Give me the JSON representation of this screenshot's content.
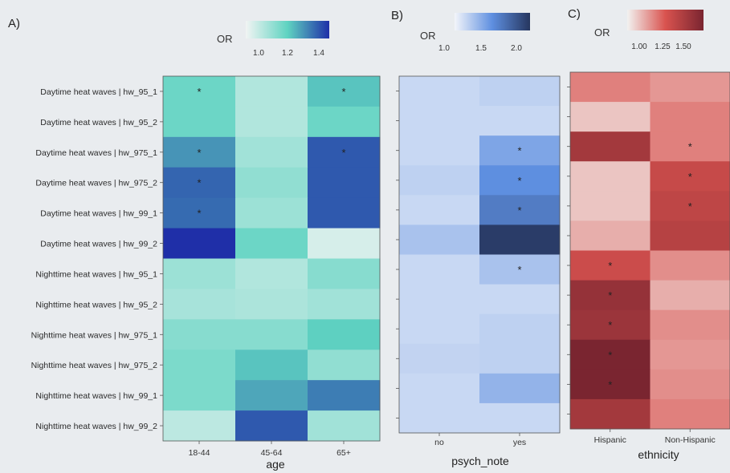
{
  "colors": {
    "background": "#e9ecef",
    "panel_A": [
      "#f1f4f3",
      "#5fd3c1",
      "#1f2fa8"
    ],
    "panel_B": [
      "#f3f5fa",
      "#5e8fe0",
      "#26365f"
    ],
    "panel_C": [
      "#f2f2f0",
      "#d9534f",
      "#7a2530"
    ]
  },
  "chart_data": [
    {
      "type": "heatmap",
      "panel_label": "A)",
      "legend_title": "OR",
      "legend_ticks": [
        "1.0",
        "1.2",
        "1.4"
      ],
      "legend_range": [
        0.9,
        1.45
      ],
      "xlabel": "age",
      "categories": [
        "18-44",
        "45-64",
        "65+"
      ],
      "rows": [
        "Daytime heat waves | hw_95_1",
        "Daytime heat waves | hw_95_2",
        "Daytime heat waves | hw_975_1",
        "Daytime heat waves | hw_975_2",
        "Daytime heat waves | hw_99_1",
        "Daytime heat waves | hw_99_2",
        "Nighttime heat waves | hw_95_1",
        "Nighttime heat waves | hw_95_2",
        "Nighttime heat waves | hw_975_1",
        "Nighttime heat waves | hw_975_2",
        "Nighttime heat waves | hw_99_1",
        "Nighttime heat waves | hw_99_2"
      ],
      "values": [
        [
          1.15,
          1.02,
          1.2
        ],
        [
          1.15,
          1.02,
          1.15
        ],
        [
          1.28,
          1.05,
          1.38
        ],
        [
          1.36,
          1.08,
          1.38
        ],
        [
          1.35,
          1.06,
          1.38
        ],
        [
          1.45,
          1.15,
          0.95
        ],
        [
          1.06,
          1.02,
          1.1
        ],
        [
          1.04,
          1.03,
          1.05
        ],
        [
          1.1,
          1.1,
          1.18
        ],
        [
          1.12,
          1.2,
          1.08
        ],
        [
          1.12,
          1.25,
          1.32
        ],
        [
          1.0,
          1.38,
          1.05
        ]
      ],
      "stars": [
        [
          true,
          false,
          true
        ],
        [
          false,
          false,
          false
        ],
        [
          true,
          false,
          true
        ],
        [
          true,
          false,
          false
        ],
        [
          true,
          false,
          false
        ],
        [
          false,
          false,
          false
        ],
        [
          false,
          false,
          false
        ],
        [
          false,
          false,
          false
        ],
        [
          false,
          false,
          false
        ],
        [
          false,
          false,
          false
        ],
        [
          false,
          false,
          false
        ],
        [
          false,
          false,
          false
        ]
      ]
    },
    {
      "type": "heatmap",
      "panel_label": "B)",
      "legend_title": "OR",
      "legend_ticks": [
        "1.0",
        "1.5",
        "2.0"
      ],
      "legend_range": [
        0.8,
        2.2
      ],
      "xlabel": "psych_note",
      "categories": [
        "no",
        "yes"
      ],
      "values": [
        [
          1.0,
          1.05
        ],
        [
          1.0,
          1.0
        ],
        [
          1.0,
          1.35
        ],
        [
          1.05,
          1.5
        ],
        [
          1.0,
          1.65
        ],
        [
          1.15,
          2.15
        ],
        [
          1.0,
          1.15
        ],
        [
          1.0,
          1.0
        ],
        [
          1.0,
          1.05
        ],
        [
          1.03,
          1.05
        ],
        [
          1.0,
          1.25
        ],
        [
          1.0,
          1.0
        ]
      ],
      "stars": [
        [
          false,
          false
        ],
        [
          false,
          false
        ],
        [
          false,
          true
        ],
        [
          false,
          true
        ],
        [
          false,
          true
        ],
        [
          false,
          false
        ],
        [
          false,
          true
        ],
        [
          false,
          false
        ],
        [
          false,
          false
        ],
        [
          false,
          false
        ],
        [
          false,
          false
        ],
        [
          false,
          false
        ]
      ]
    },
    {
      "type": "heatmap",
      "panel_label": "C)",
      "legend_title": "OR",
      "legend_ticks": [
        "1.00",
        "1.25",
        "1.50"
      ],
      "legend_range": [
        0.9,
        1.6
      ],
      "xlabel": "ethnicity",
      "categories": [
        "Hispanic",
        "Non-Hispanic"
      ],
      "values": [
        [
          1.15,
          1.1
        ],
        [
          1.0,
          1.15
        ],
        [
          1.45,
          1.15
        ],
        [
          1.0,
          1.32
        ],
        [
          1.0,
          1.35
        ],
        [
          1.05,
          1.38
        ],
        [
          1.3,
          1.12
        ],
        [
          1.5,
          1.05
        ],
        [
          1.48,
          1.12
        ],
        [
          1.65,
          1.1
        ],
        [
          1.65,
          1.12
        ],
        [
          1.45,
          1.15
        ]
      ],
      "stars": [
        [
          false,
          false
        ],
        [
          false,
          false
        ],
        [
          false,
          true
        ],
        [
          false,
          true
        ],
        [
          false,
          true
        ],
        [
          false,
          false
        ],
        [
          true,
          false
        ],
        [
          true,
          false
        ],
        [
          true,
          false
        ],
        [
          true,
          false
        ],
        [
          true,
          false
        ],
        [
          false,
          false
        ]
      ]
    }
  ]
}
